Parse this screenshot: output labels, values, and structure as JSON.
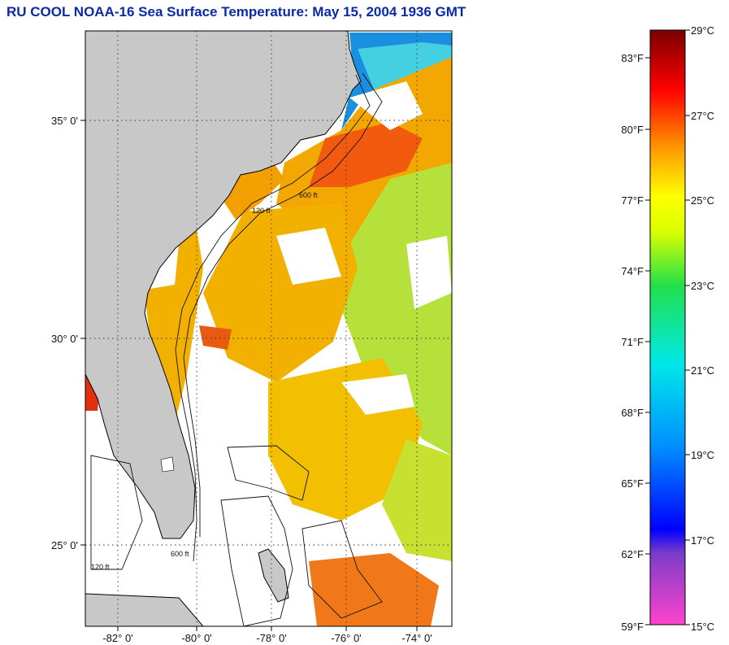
{
  "title": "RU COOL  NOAA-16  Sea Surface Temperature:  May 15, 2004 1936 GMT",
  "map": {
    "lat_labels": [
      "35° 0'",
      "30° 0'",
      "25° 0'"
    ],
    "lon_labels": [
      "-82° 0'",
      "-80° 0'",
      "-78° 0'",
      "-76° 0'",
      "-74° 0'"
    ],
    "contour_labels": [
      "120 ft",
      "600 ft"
    ],
    "colors": {
      "land": "#c8c8c8",
      "ocean_warm": "#f2a800",
      "ocean_cool": "#b6e03a",
      "hot": "#f25a10"
    }
  },
  "colorbar": {
    "celsius_labels": [
      "29°C",
      "27°C",
      "25°C",
      "23°C",
      "21°C",
      "19°C",
      "17°C",
      "15°C"
    ],
    "fahrenheit_labels": [
      "83°F",
      "80°F",
      "77°F",
      "74°F",
      "71°F",
      "68°F",
      "65°F",
      "62°F",
      "59°F"
    ]
  }
}
